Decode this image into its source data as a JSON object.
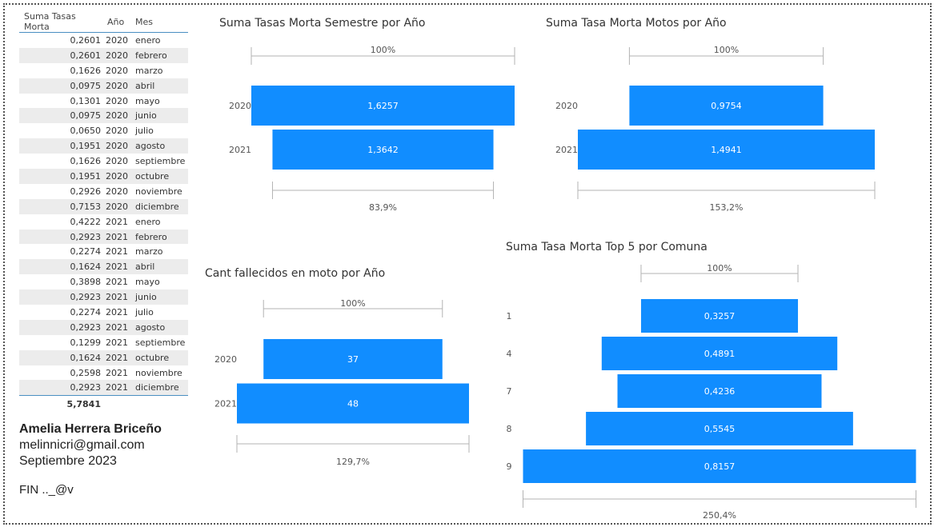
{
  "table": {
    "headers": [
      "Suma Tasas Morta",
      "Año",
      "Mes"
    ],
    "rows": [
      [
        "0,2601",
        "2020",
        "enero"
      ],
      [
        "0,2601",
        "2020",
        "febrero"
      ],
      [
        "0,1626",
        "2020",
        "marzo"
      ],
      [
        "0,0975",
        "2020",
        "abril"
      ],
      [
        "0,1301",
        "2020",
        "mayo"
      ],
      [
        "0,0975",
        "2020",
        "junio"
      ],
      [
        "0,0650",
        "2020",
        "julio"
      ],
      [
        "0,1951",
        "2020",
        "agosto"
      ],
      [
        "0,1626",
        "2020",
        "septiembre"
      ],
      [
        "0,1951",
        "2020",
        "octubre"
      ],
      [
        "0,2926",
        "2020",
        "noviembre"
      ],
      [
        "0,7153",
        "2020",
        "diciembre"
      ],
      [
        "0,4222",
        "2021",
        "enero"
      ],
      [
        "0,2923",
        "2021",
        "febrero"
      ],
      [
        "0,2274",
        "2021",
        "marzo"
      ],
      [
        "0,1624",
        "2021",
        "abril"
      ],
      [
        "0,3898",
        "2021",
        "mayo"
      ],
      [
        "0,2923",
        "2021",
        "junio"
      ],
      [
        "0,2274",
        "2021",
        "julio"
      ],
      [
        "0,2923",
        "2021",
        "agosto"
      ],
      [
        "0,1299",
        "2021",
        "septiembre"
      ],
      [
        "0,1624",
        "2021",
        "octubre"
      ],
      [
        "0,2598",
        "2021",
        "noviembre"
      ],
      [
        "0,2923",
        "2021",
        "diciembre"
      ]
    ],
    "total": "5,7841"
  },
  "author": {
    "name": "Amelia Herrera Briceño",
    "email": "melinnicri@gmail.com",
    "date": "Septiembre 2023",
    "fin": "FIN .._@v"
  },
  "colors": {
    "bar": "#118dff",
    "bar_text": "#ffffff",
    "bracket": "#b3b3b3",
    "text": "#555555"
  },
  "chart_data": [
    {
      "type": "bar",
      "title": "Suma Tasas Morta Semestre por Año",
      "categories": [
        "2020",
        "2021"
      ],
      "values": [
        1.6257,
        1.3642
      ],
      "labels": [
        "1,6257",
        "1,3642"
      ],
      "top_pct": "100%",
      "bottom_pct": "83,9%"
    },
    {
      "type": "bar",
      "title": "Suma Tasa Morta Motos por Año",
      "categories": [
        "2020",
        "2021"
      ],
      "values": [
        0.9754,
        1.4941
      ],
      "labels": [
        "0,9754",
        "1,4941"
      ],
      "top_pct": "100%",
      "bottom_pct": "153,2%"
    },
    {
      "type": "bar",
      "title": "Cant fallecidos en moto por Año",
      "categories": [
        "2020",
        "2021"
      ],
      "values": [
        37,
        48
      ],
      "labels": [
        "37",
        "48"
      ],
      "top_pct": "100%",
      "bottom_pct": "129,7%"
    },
    {
      "type": "bar",
      "title": "Suma Tasa Morta Top 5 por Comuna",
      "categories": [
        "1",
        "4",
        "7",
        "8",
        "9"
      ],
      "values": [
        0.3257,
        0.4891,
        0.4236,
        0.5545,
        0.8157
      ],
      "labels": [
        "0,3257",
        "0,4891",
        "0,4236",
        "0,5545",
        "0,8157"
      ],
      "top_pct": "100%",
      "bottom_pct": "250,4%"
    }
  ]
}
